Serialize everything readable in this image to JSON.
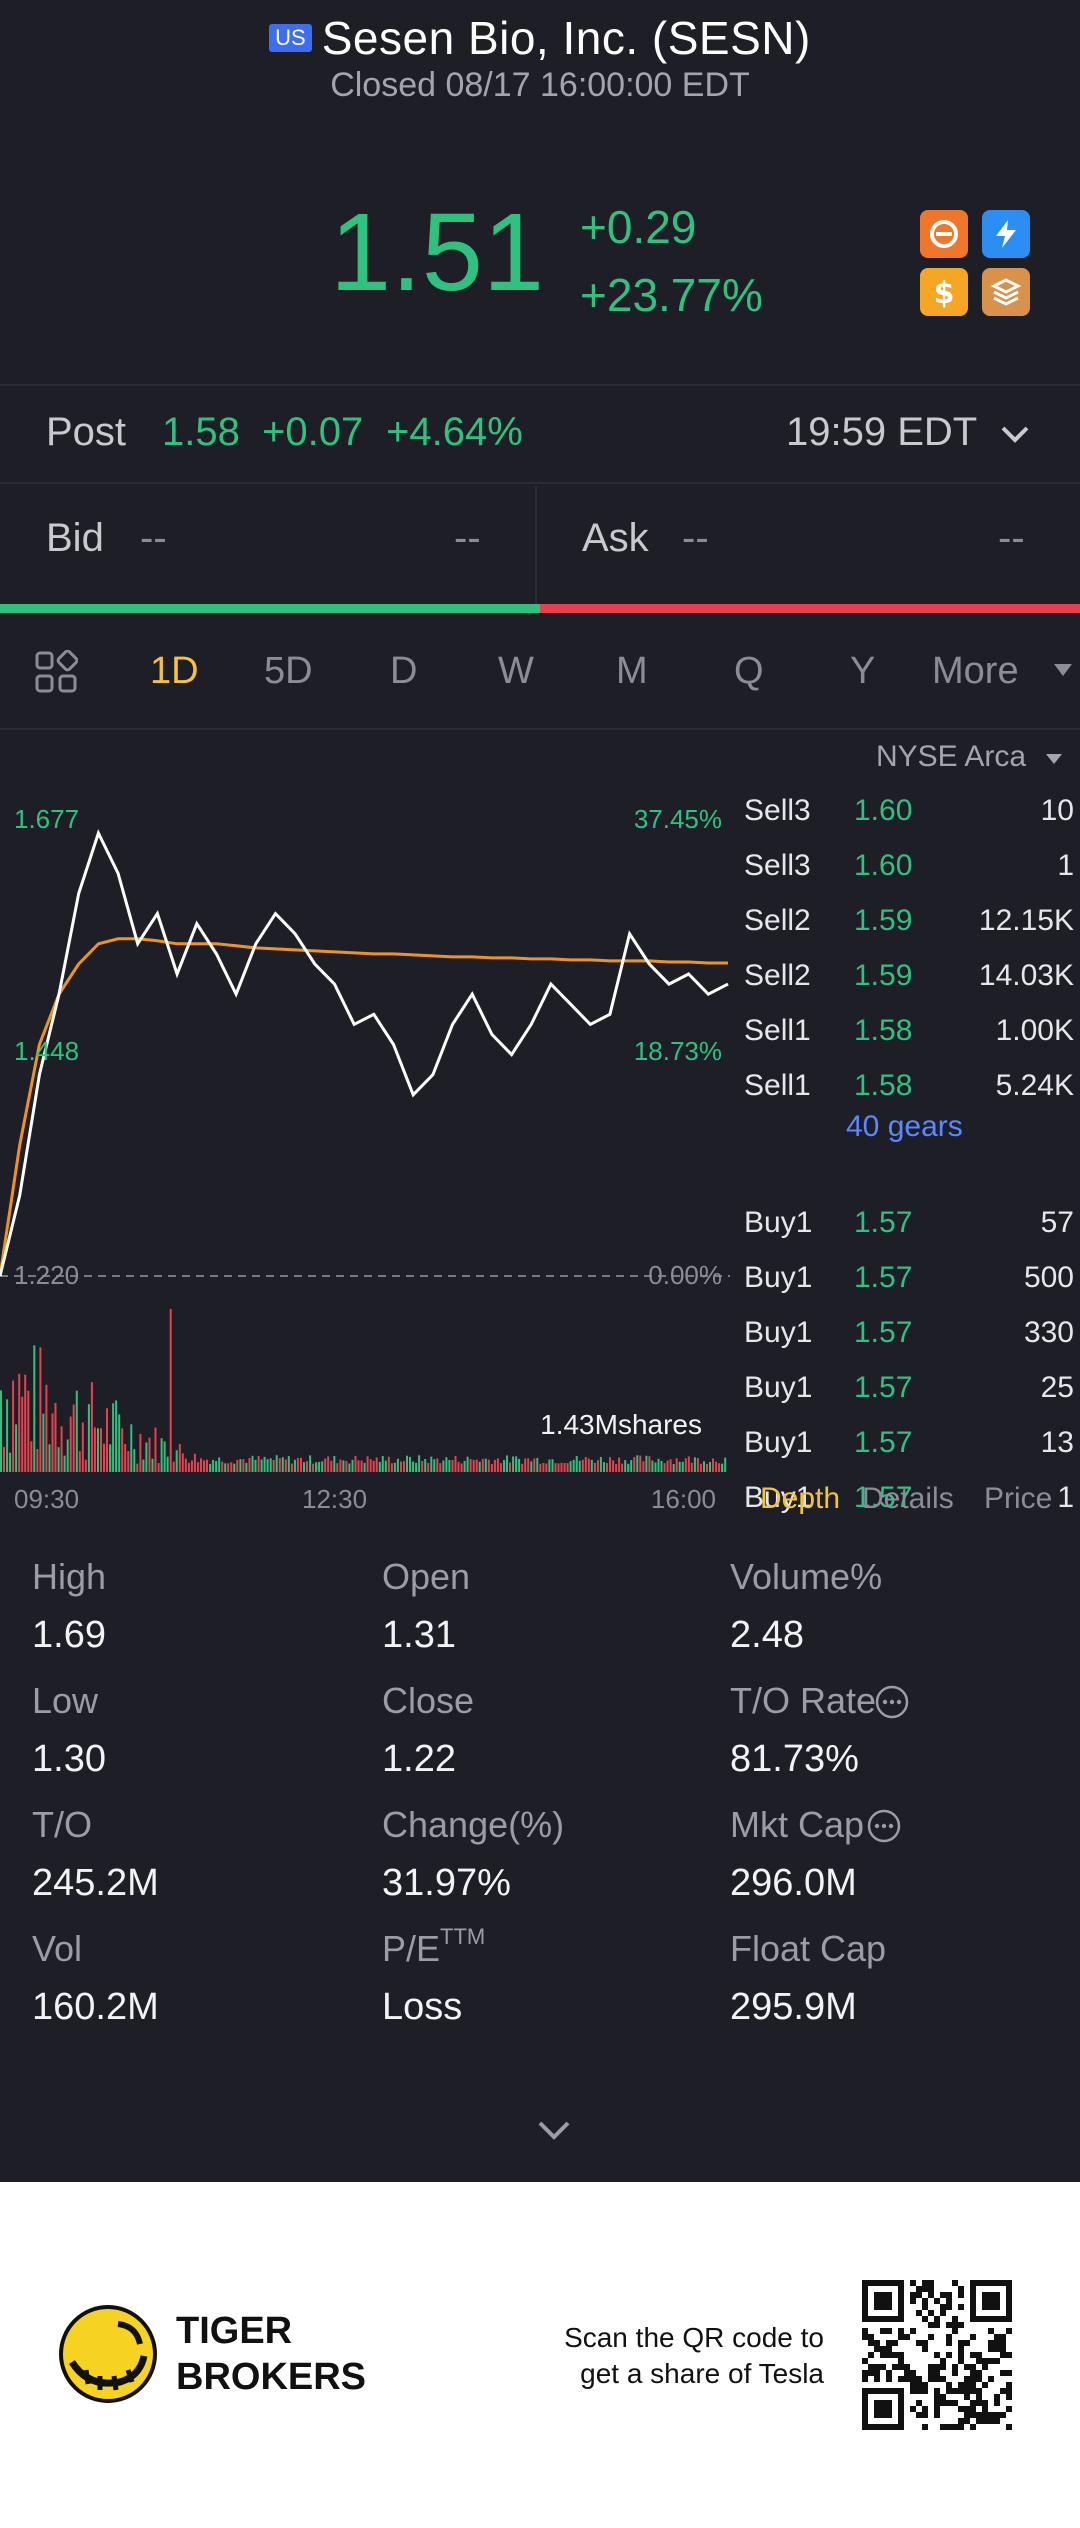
{
  "header": {
    "market_badge": "US",
    "title": "Sesen Bio, Inc. (SESN)",
    "status": "Closed 08/17 16:00:00 EDT",
    "last_price": "1.51",
    "change": "+0.29",
    "change_pct": "+23.77%"
  },
  "post": {
    "label": "Post",
    "price": "1.58",
    "change": "+0.07",
    "change_pct": "+4.64%",
    "time": "19:59 EDT"
  },
  "bid_ask": {
    "bid_label": "Bid",
    "bid_price": "--",
    "bid_size": "--",
    "ask_label": "Ask",
    "ask_price": "--",
    "ask_size": "--"
  },
  "tabs": [
    "1D",
    "5D",
    "D",
    "W",
    "M",
    "Q",
    "Y",
    "More"
  ],
  "active_tab": "1D",
  "chart_labels": {
    "high": "1.677",
    "high_pct": "37.45%",
    "low": "1.448",
    "low_pct": "18.73%",
    "base": "1.220",
    "base_pct": "0.00%",
    "volume": "1.43Mshares",
    "t1": "09:30",
    "t2": "12:30",
    "t3": "16:00"
  },
  "chart_data": {
    "type": "line",
    "x_range": [
      "09:30",
      "16:00"
    ],
    "ylim": [
      1.22,
      1.677
    ],
    "series": [
      {
        "values": [
          1.22,
          1.3,
          1.42,
          1.5,
          1.6,
          1.66,
          1.62,
          1.55,
          1.58,
          1.52,
          1.57,
          1.54,
          1.5,
          1.55,
          1.58,
          1.56,
          1.53,
          1.51,
          1.47,
          1.48,
          1.45,
          1.4,
          1.42,
          1.47,
          1.5,
          1.46,
          1.44,
          1.47,
          1.51,
          1.49,
          1.47,
          1.48,
          1.56,
          1.53,
          1.51,
          1.52,
          1.5,
          1.51
        ]
      },
      {
        "values": [
          1.22,
          1.35,
          1.45,
          1.5,
          1.53,
          1.55,
          1.555,
          1.555,
          1.553,
          1.55,
          1.55,
          1.55,
          1.548,
          1.546,
          1.545,
          1.544,
          1.543,
          1.542,
          1.541,
          1.54,
          1.54,
          1.539,
          1.538,
          1.537,
          1.537,
          1.536,
          1.536,
          1.535,
          1.535,
          1.534,
          1.534,
          1.533,
          1.533,
          1.533,
          1.532,
          1.532,
          1.531,
          1.531
        ]
      }
    ]
  },
  "order_book": {
    "exchange": "NYSE Arca",
    "sells": [
      {
        "side": "Sell3",
        "price": "1.60",
        "qty": "10"
      },
      {
        "side": "Sell3",
        "price": "1.60",
        "qty": "1"
      },
      {
        "side": "Sell2",
        "price": "1.59",
        "qty": "12.15K"
      },
      {
        "side": "Sell2",
        "price": "1.59",
        "qty": "14.03K"
      },
      {
        "side": "Sell1",
        "price": "1.58",
        "qty": "1.00K"
      },
      {
        "side": "Sell1",
        "price": "1.58",
        "qty": "5.24K"
      }
    ],
    "gears": "40 gears",
    "buys": [
      {
        "side": "Buy1",
        "price": "1.57",
        "qty": "57"
      },
      {
        "side": "Buy1",
        "price": "1.57",
        "qty": "500"
      },
      {
        "side": "Buy1",
        "price": "1.57",
        "qty": "330"
      },
      {
        "side": "Buy1",
        "price": "1.57",
        "qty": "25"
      },
      {
        "side": "Buy1",
        "price": "1.57",
        "qty": "13"
      },
      {
        "side": "Buy1",
        "price": "1.57",
        "qty": "1"
      }
    ],
    "tabs": [
      "Depth",
      "Details",
      "Price"
    ]
  },
  "stats": [
    {
      "label": "High",
      "value": "1.69"
    },
    {
      "label": "Open",
      "value": "1.31"
    },
    {
      "label": "Volume%",
      "value": "2.48"
    },
    {
      "label": "Low",
      "value": "1.30"
    },
    {
      "label": "Close",
      "value": "1.22"
    },
    {
      "label": "T/O Rate",
      "value": "81.73%"
    },
    {
      "label": "T/O",
      "value": "245.2M"
    },
    {
      "label": "Change(%)",
      "value": "31.97%"
    },
    {
      "label": "Mkt Cap",
      "value": "296.0M"
    },
    {
      "label": "Vol",
      "value": "160.2M"
    },
    {
      "label": "P/E",
      "value": "Loss"
    },
    {
      "label": "Float Cap",
      "value": "295.9M"
    }
  ],
  "pe_superscript": "TTM",
  "footer": {
    "brand_line1": "TIGER",
    "brand_line2": "BROKERS",
    "promo_line1": "Scan the QR code to",
    "promo_line2": "get a share of Tesla"
  },
  "colors": {
    "up": "#2ec27e",
    "down": "#e8414e",
    "accent": "#f5c23e",
    "avg_line": "#f0921e"
  }
}
